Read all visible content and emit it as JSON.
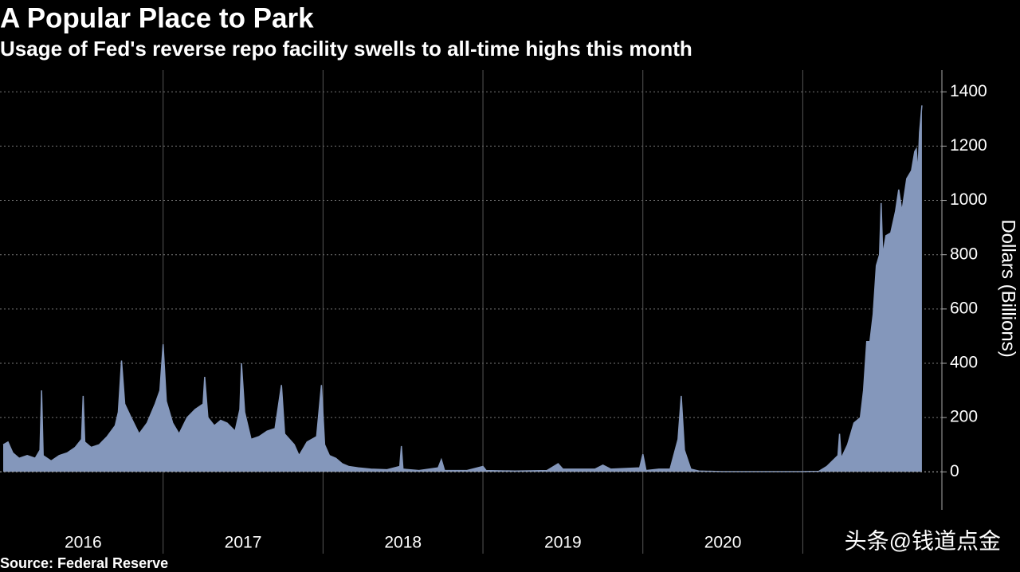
{
  "chart_data": {
    "type": "area",
    "title": "A Popular Place to Park",
    "subtitle": "Usage of Fed's reverse repo facility swells to all-time highs this month",
    "y_axis_label": "Dollars (Billions)",
    "source": "Source: Federal Reserve",
    "watermark": "头条@钱道点金",
    "color": "#8497bb",
    "grid": true,
    "xlim": [
      2015.98,
      2021.87
    ],
    "xticks": [
      2017,
      2018,
      2019,
      2020,
      2021
    ],
    "year_labels": [
      2016,
      2017,
      2018,
      2019,
      2020
    ],
    "ylim": [
      -140,
      1480
    ],
    "yticks": [
      0,
      200,
      400,
      600,
      800,
      1000,
      1200,
      1400
    ],
    "x": [
      2016.0,
      2016.03,
      2016.06,
      2016.1,
      2016.15,
      2016.2,
      2016.23,
      2016.24,
      2016.25,
      2016.3,
      2016.35,
      2016.4,
      2016.45,
      2016.49,
      2016.5,
      2016.51,
      2016.55,
      2016.6,
      2016.65,
      2016.7,
      2016.72,
      2016.74,
      2016.76,
      2016.8,
      2016.85,
      2016.9,
      2016.95,
      2016.98,
      2017.0,
      2017.02,
      2017.06,
      2017.1,
      2017.15,
      2017.2,
      2017.25,
      2017.26,
      2017.28,
      2017.32,
      2017.36,
      2017.4,
      2017.45,
      2017.48,
      2017.49,
      2017.51,
      2017.55,
      2017.6,
      2017.65,
      2017.7,
      2017.74,
      2017.76,
      2017.82,
      2017.85,
      2017.9,
      2017.96,
      2017.99,
      2018.01,
      2018.04,
      2018.08,
      2018.12,
      2018.16,
      2018.22,
      2018.3,
      2018.4,
      2018.48,
      2018.49,
      2018.5,
      2018.6,
      2018.72,
      2018.74,
      2018.76,
      2018.9,
      2019.0,
      2019.02,
      2019.2,
      2019.4,
      2019.47,
      2019.5,
      2019.7,
      2019.75,
      2019.8,
      2019.98,
      2020.0,
      2020.02,
      2020.1,
      2020.17,
      2020.22,
      2020.24,
      2020.26,
      2020.3,
      2020.35,
      2020.5,
      2020.8,
      2021.0,
      2021.1,
      2021.15,
      2021.22,
      2021.23,
      2021.24,
      2021.28,
      2021.32,
      2021.36,
      2021.38,
      2021.4,
      2021.42,
      2021.44,
      2021.46,
      2021.48,
      2021.49,
      2021.5,
      2021.52,
      2021.55,
      2021.58,
      2021.6,
      2021.62,
      2021.65,
      2021.68,
      2021.7,
      2021.71,
      2021.72,
      2021.73,
      2021.745
    ],
    "values": [
      100,
      110,
      70,
      50,
      60,
      50,
      80,
      300,
      60,
      40,
      60,
      70,
      90,
      120,
      280,
      110,
      90,
      100,
      130,
      170,
      220,
      410,
      250,
      200,
      140,
      180,
      250,
      300,
      470,
      260,
      180,
      140,
      200,
      230,
      250,
      350,
      200,
      170,
      190,
      180,
      150,
      230,
      400,
      220,
      120,
      130,
      150,
      160,
      320,
      140,
      100,
      60,
      110,
      130,
      320,
      100,
      60,
      50,
      30,
      20,
      15,
      10,
      8,
      20,
      95,
      10,
      5,
      15,
      45,
      5,
      5,
      20,
      5,
      3,
      5,
      30,
      10,
      10,
      25,
      10,
      15,
      65,
      5,
      10,
      10,
      120,
      280,
      80,
      10,
      3,
      1,
      1,
      1,
      2,
      20,
      60,
      140,
      50,
      100,
      180,
      200,
      300,
      480,
      480,
      580,
      760,
      800,
      990,
      800,
      870,
      880,
      960,
      1040,
      960,
      1080,
      1110,
      1180,
      1190,
      1100,
      1250,
      1350
    ]
  }
}
